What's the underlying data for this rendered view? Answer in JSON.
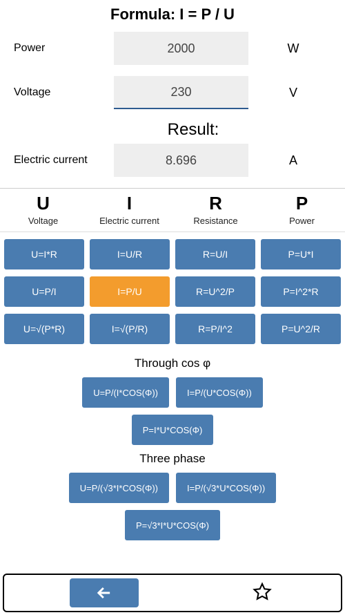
{
  "formula_title": "Formula: I = P / U",
  "inputs": [
    {
      "label": "Power",
      "value": "2000",
      "unit": "W",
      "underlined": false
    },
    {
      "label": "Voltage",
      "value": "230",
      "unit": "V",
      "underlined": true
    }
  ],
  "result_label": "Result:",
  "result": {
    "label": "Electric current",
    "value": "8.696",
    "unit": "A"
  },
  "columns": [
    {
      "symbol": "U",
      "name": "Voltage"
    },
    {
      "symbol": "I",
      "name": "Electric current"
    },
    {
      "symbol": "R",
      "name": "Resistance"
    },
    {
      "symbol": "P",
      "name": "Power"
    }
  ],
  "grid": [
    [
      {
        "t": "U=I*R"
      },
      {
        "t": "I=U/R"
      },
      {
        "t": "R=U/I"
      },
      {
        "t": "P=U*I"
      }
    ],
    [
      {
        "t": "U=P/I"
      },
      {
        "t": "I=P/U",
        "active": true
      },
      {
        "t": "R=U^2/P"
      },
      {
        "t": "P=I^2*R"
      }
    ],
    [
      {
        "t": "U=√(P*R)"
      },
      {
        "t": "I=√(P/R)"
      },
      {
        "t": "R=P/I^2"
      },
      {
        "t": "P=U^2/R"
      }
    ]
  ],
  "cos_label": "Through cos φ",
  "cos_row1": [
    "U=P/(I*COS(Φ))",
    "I=P/(U*COS(Φ))"
  ],
  "cos_row2": [
    "P=I*U*COS(Φ)"
  ],
  "three_label": "Three phase",
  "three_row1": [
    "U=P/(√3*I*COS(Φ))",
    "I=P/(√3*U*COS(Φ))"
  ],
  "three_row2": [
    "P=√3*I*U*COS(Φ)"
  ],
  "colors": {
    "btn": "#4a7cb0",
    "btn_active": "#f39c2d",
    "input_bg": "#eeeeee",
    "underline": "#2d5a8f"
  }
}
